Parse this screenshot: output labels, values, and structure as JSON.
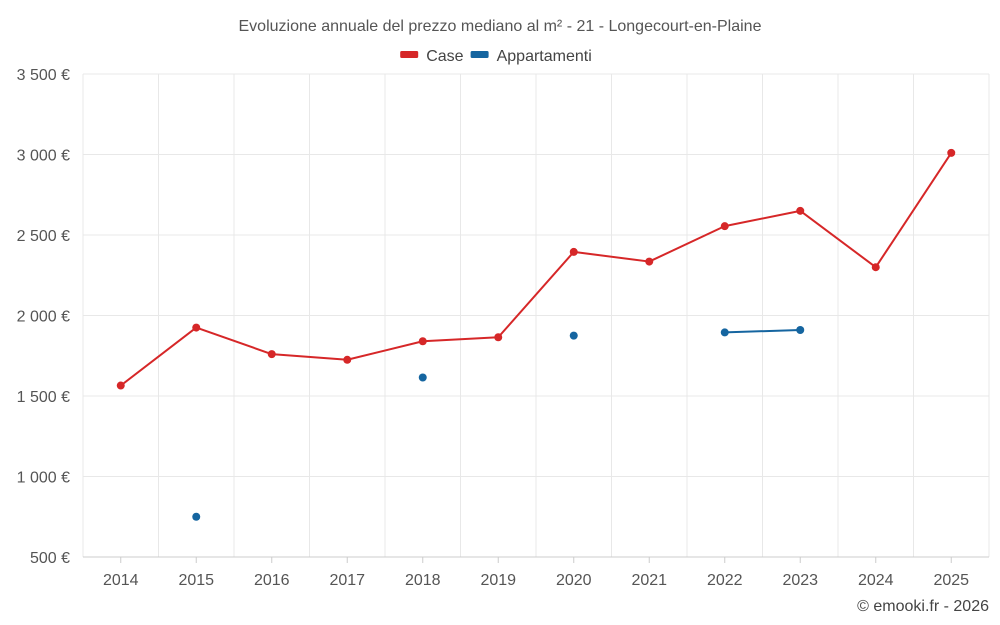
{
  "chart_data": {
    "type": "line",
    "title": "Evoluzione annuale del prezzo mediano al m² - 21 - Longecourt-en-Plaine",
    "xlabel": "",
    "ylabel": "",
    "categories": [
      "2014",
      "2015",
      "2016",
      "2017",
      "2018",
      "2019",
      "2020",
      "2021",
      "2022",
      "2023",
      "2024",
      "2025"
    ],
    "ylim": [
      500,
      3500
    ],
    "y_ticks": [
      500,
      1000,
      1500,
      2000,
      2500,
      3000,
      3500
    ],
    "y_tick_labels": [
      "500 €",
      "1 000 €",
      "1 500 €",
      "2 000 €",
      "2 500 €",
      "3 000 €",
      "3 500 €"
    ],
    "grid": true,
    "legend_position": "top-center",
    "series": [
      {
        "name": "Case",
        "color": "#d62728",
        "values": [
          1565,
          1925,
          1760,
          1725,
          1840,
          1865,
          2395,
          2335,
          2555,
          2650,
          2300,
          3010
        ]
      },
      {
        "name": "Appartamenti",
        "color": "#1565a0",
        "values": [
          null,
          750,
          null,
          null,
          1615,
          null,
          1875,
          null,
          1895,
          1910,
          null,
          null
        ]
      }
    ]
  },
  "credit": "© emooki.fr - 2026"
}
